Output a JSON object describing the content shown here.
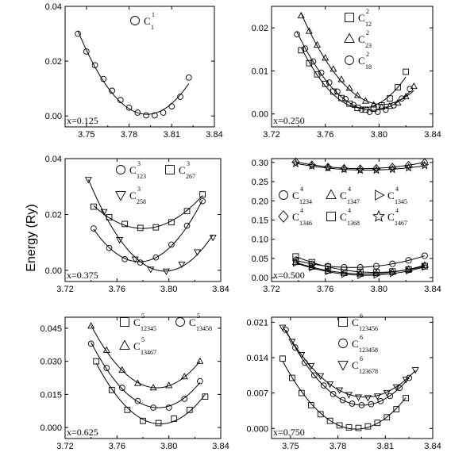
{
  "figure": {
    "ylabel": "Energy (Ry)"
  },
  "chart_data": [
    {
      "type": "scatter",
      "annotation": "x=0.125",
      "xlim": [
        3.735,
        3.84
      ],
      "ylim": [
        -0.004,
        0.04
      ],
      "xticks": [
        "3.75",
        "3.78",
        "3.81",
        "3.84"
      ],
      "xtick_values": [
        3.75,
        3.78,
        3.81,
        3.84
      ],
      "yticks": [
        "0.00",
        "0.02",
        "0.04"
      ],
      "ytick_values": [
        0.0,
        0.02,
        0.04
      ],
      "legend_cols": 1,
      "series": [
        {
          "name": "C",
          "sub": "1",
          "sup": "1",
          "marker": "circle",
          "x": [
            3.744,
            3.75,
            3.756,
            3.762,
            3.768,
            3.774,
            3.78,
            3.786,
            3.792,
            3.798,
            3.804,
            3.81,
            3.816,
            3.822
          ],
          "y": [
            0.03,
            0.0235,
            0.0185,
            0.0135,
            0.0092,
            0.0058,
            0.003,
            0.0012,
            0.0002,
            0.0002,
            0.0012,
            0.0035,
            0.007,
            0.014
          ]
        }
      ]
    },
    {
      "type": "scatter",
      "annotation": "x=0.250",
      "xlim": [
        3.72,
        3.84
      ],
      "ylim": [
        -0.003,
        0.025
      ],
      "xticks": [
        "3.72",
        "3.76",
        "3.80",
        "3.84"
      ],
      "xtick_values": [
        3.72,
        3.76,
        3.8,
        3.84
      ],
      "yticks": [
        "0.00",
        "0.01",
        "0.02"
      ],
      "ytick_values": [
        0.0,
        0.01,
        0.02
      ],
      "legend_cols": 1,
      "series": [
        {
          "name": "C",
          "sub": "12",
          "sup": "2",
          "marker": "square",
          "x": [
            3.742,
            3.748,
            3.754,
            3.76,
            3.766,
            3.772,
            3.778,
            3.784,
            3.79,
            3.796,
            3.802,
            3.808,
            3.814,
            3.82
          ],
          "y": [
            0.0148,
            0.0118,
            0.0092,
            0.007,
            0.0052,
            0.0037,
            0.0024,
            0.0014,
            0.001,
            0.0012,
            0.002,
            0.0036,
            0.0062,
            0.0098
          ]
        },
        {
          "name": "C",
          "sub": "23",
          "sup": "2",
          "marker": "triangle-up",
          "x": [
            3.742,
            3.748,
            3.754,
            3.76,
            3.766,
            3.772,
            3.778,
            3.784,
            3.79,
            3.796,
            3.802,
            3.808,
            3.814,
            3.82,
            3.826
          ],
          "y": [
            0.0228,
            0.0192,
            0.016,
            0.013,
            0.0104,
            0.008,
            0.006,
            0.0043,
            0.003,
            0.0021,
            0.0016,
            0.0018,
            0.0026,
            0.004,
            0.0064
          ]
        },
        {
          "name": "C",
          "sub": "18",
          "sup": "2",
          "marker": "circle",
          "x": [
            3.739,
            3.745,
            3.751,
            3.757,
            3.763,
            3.769,
            3.775,
            3.781,
            3.787,
            3.793,
            3.799,
            3.805,
            3.811,
            3.817,
            3.823
          ],
          "y": [
            0.0185,
            0.0152,
            0.0122,
            0.0096,
            0.0073,
            0.0052,
            0.0035,
            0.0021,
            0.001,
            0.0005,
            0.0005,
            0.001,
            0.002,
            0.0036,
            0.0058
          ]
        }
      ]
    },
    {
      "type": "scatter",
      "annotation": "x=0.375",
      "xlim": [
        3.72,
        3.84
      ],
      "ylim": [
        -0.004,
        0.04
      ],
      "xticks": [
        "3.72",
        "3.76",
        "3.80",
        "3.84"
      ],
      "xtick_values": [
        3.72,
        3.76,
        3.8,
        3.84
      ],
      "yticks": [
        "0.00",
        "0.02",
        "0.04"
      ],
      "ytick_values": [
        0.0,
        0.02,
        0.04
      ],
      "legend_cols": 2,
      "series": [
        {
          "name": "C",
          "sub": "123",
          "sup": "3",
          "marker": "circle",
          "x": [
            3.742,
            3.754,
            3.766,
            3.778,
            3.79,
            3.802,
            3.814,
            3.826
          ],
          "y": [
            0.015,
            0.008,
            0.004,
            0.0028,
            0.0046,
            0.0092,
            0.016,
            0.0248
          ]
        },
        {
          "name": "C",
          "sub": "267",
          "sup": "3",
          "marker": "square",
          "x": [
            3.742,
            3.754,
            3.766,
            3.778,
            3.79,
            3.802,
            3.814,
            3.826
          ],
          "y": [
            0.0228,
            0.019,
            0.0166,
            0.0152,
            0.0154,
            0.0172,
            0.0212,
            0.0272
          ]
        },
        {
          "name": "C",
          "sub": "258",
          "sup": "3",
          "marker": "triangle-down",
          "x": [
            3.738,
            3.75,
            3.762,
            3.774,
            3.786,
            3.798,
            3.81,
            3.822,
            3.834
          ],
          "y": [
            0.0325,
            0.021,
            0.011,
            0.004,
            0.0004,
            -0.0003,
            0.0022,
            0.0066,
            0.0118
          ]
        }
      ]
    },
    {
      "type": "scatter",
      "annotation": "x=0.500",
      "xlim": [
        3.72,
        3.84
      ],
      "ylim": [
        -0.01,
        0.31
      ],
      "xticks": [
        "3.72",
        "3.76",
        "3.80",
        "3.84"
      ],
      "xtick_values": [
        3.72,
        3.76,
        3.8,
        3.84
      ],
      "yticks": [
        "0.00",
        "0.05",
        "0.10",
        "0.15",
        "0.20",
        "0.25",
        "0.30"
      ],
      "ytick_values": [
        0.0,
        0.05,
        0.1,
        0.15,
        0.2,
        0.25,
        0.3
      ],
      "legend_cols": 3,
      "series": [
        {
          "name": "C",
          "sub": "1234",
          "sup": "4",
          "marker": "circle",
          "x": [
            3.738,
            3.75,
            3.762,
            3.774,
            3.786,
            3.798,
            3.81,
            3.822,
            3.834
          ],
          "y": [
            0.045,
            0.036,
            0.03,
            0.027,
            0.027,
            0.03,
            0.036,
            0.045,
            0.057
          ]
        },
        {
          "name": "C",
          "sub": "1347",
          "sup": "4",
          "marker": "triangle-up",
          "x": [
            3.738,
            3.75,
            3.762,
            3.774,
            3.786,
            3.798,
            3.81,
            3.822,
            3.834
          ],
          "y": [
            0.04,
            0.028,
            0.018,
            0.012,
            0.01,
            0.011,
            0.015,
            0.022,
            0.032
          ]
        },
        {
          "name": "C",
          "sub": "1345",
          "sup": "4",
          "marker": "triangle-right",
          "x": [
            3.738,
            3.75,
            3.762,
            3.774,
            3.786,
            3.798,
            3.81,
            3.822,
            3.834
          ],
          "y": [
            0.038,
            0.026,
            0.016,
            0.009,
            0.006,
            0.007,
            0.011,
            0.018,
            0.028
          ]
        },
        {
          "name": "C",
          "sub": "1346",
          "sup": "4",
          "marker": "diamond",
          "x": [
            3.738,
            3.75,
            3.762,
            3.774,
            3.786,
            3.798,
            3.81,
            3.822,
            3.834
          ],
          "y": [
            0.302,
            0.294,
            0.288,
            0.285,
            0.284,
            0.285,
            0.288,
            0.293,
            0.3
          ]
        },
        {
          "name": "C",
          "sub": "1368",
          "sup": "4",
          "marker": "square",
          "x": [
            3.738,
            3.75,
            3.762,
            3.774,
            3.786,
            3.798,
            3.81,
            3.822,
            3.834
          ],
          "y": [
            0.055,
            0.04,
            0.028,
            0.02,
            0.015,
            0.014,
            0.016,
            0.021,
            0.03
          ]
        },
        {
          "name": "C",
          "sub": "1467",
          "sup": "4",
          "marker": "star",
          "x": [
            3.738,
            3.75,
            3.762,
            3.774,
            3.786,
            3.798,
            3.81,
            3.822,
            3.834
          ],
          "y": [
            0.297,
            0.291,
            0.286,
            0.282,
            0.28,
            0.28,
            0.282,
            0.286,
            0.292
          ]
        }
      ]
    },
    {
      "type": "scatter",
      "annotation": "x=0.625",
      "xlim": [
        3.72,
        3.84
      ],
      "ylim": [
        -0.005,
        0.05
      ],
      "xticks": [
        "3.72",
        "3.76",
        "3.80",
        "3.84"
      ],
      "xtick_values": [
        3.72,
        3.76,
        3.8,
        3.84
      ],
      "yticks": [
        "0.000",
        "0.015",
        "0.030",
        "0.045"
      ],
      "ytick_values": [
        0.0,
        0.015,
        0.03,
        0.045
      ],
      "legend_cols": 2,
      "series": [
        {
          "name": "C",
          "sub": "12345",
          "sup": "5",
          "marker": "square",
          "x": [
            3.744,
            3.756,
            3.768,
            3.78,
            3.792,
            3.804,
            3.816,
            3.828
          ],
          "y": [
            0.03,
            0.017,
            0.008,
            0.003,
            0.002,
            0.004,
            0.008,
            0.014
          ]
        },
        {
          "name": "C",
          "sub": "13458",
          "sup": "5",
          "marker": "circle",
          "x": [
            3.74,
            3.752,
            3.764,
            3.776,
            3.788,
            3.8,
            3.812,
            3.824
          ],
          "y": [
            0.038,
            0.027,
            0.018,
            0.012,
            0.009,
            0.009,
            0.013,
            0.021
          ]
        },
        {
          "name": "C",
          "sub": "13467",
          "sup": "5",
          "marker": "triangle-up",
          "x": [
            3.74,
            3.752,
            3.764,
            3.776,
            3.788,
            3.8,
            3.812,
            3.824
          ],
          "y": [
            0.046,
            0.035,
            0.026,
            0.02,
            0.018,
            0.019,
            0.023,
            0.03
          ]
        }
      ]
    },
    {
      "type": "scatter",
      "annotation": "x=0.750",
      "xlim": [
        3.738,
        3.84
      ],
      "ylim": [
        -0.002,
        0.022
      ],
      "xticks": [
        "3.75",
        "3.78",
        "3.81",
        "3.84"
      ],
      "xtick_values": [
        3.75,
        3.78,
        3.81,
        3.84
      ],
      "yticks": [
        "0.000",
        "0.007",
        "0.014",
        "0.021"
      ],
      "ytick_values": [
        0.0,
        0.007,
        0.014,
        0.021
      ],
      "legend_cols": 1,
      "series": [
        {
          "name": "C",
          "sub": "123456",
          "sup": "6",
          "marker": "square",
          "x": [
            3.745,
            3.751,
            3.757,
            3.763,
            3.769,
            3.775,
            3.781,
            3.787,
            3.793,
            3.799,
            3.805,
            3.811,
            3.817,
            3.823
          ],
          "y": [
            0.0138,
            0.01,
            0.007,
            0.0046,
            0.0028,
            0.0015,
            0.0006,
            0.0002,
            0.0001,
            0.0004,
            0.0011,
            0.0022,
            0.0038,
            0.006
          ]
        },
        {
          "name": "C",
          "sub": "123458",
          "sup": "6",
          "marker": "circle",
          "x": [
            3.747,
            3.753,
            3.759,
            3.765,
            3.771,
            3.777,
            3.783,
            3.789,
            3.795,
            3.801,
            3.807,
            3.813,
            3.819,
            3.825
          ],
          "y": [
            0.0195,
            0.016,
            0.013,
            0.0105,
            0.0085,
            0.0068,
            0.0056,
            0.0049,
            0.0046,
            0.0048,
            0.0054,
            0.0064,
            0.008,
            0.01
          ]
        },
        {
          "name": "C",
          "sub": "123678",
          "sup": "6",
          "marker": "triangle-down",
          "x": [
            3.745,
            3.751,
            3.757,
            3.763,
            3.769,
            3.775,
            3.781,
            3.787,
            3.793,
            3.799,
            3.805,
            3.811,
            3.817,
            3.823,
            3.829
          ],
          "y": [
            0.02,
            0.0172,
            0.0146,
            0.0124,
            0.0104,
            0.0088,
            0.0076,
            0.0067,
            0.0062,
            0.0061,
            0.0064,
            0.0071,
            0.0082,
            0.0097,
            0.0116
          ]
        }
      ]
    }
  ]
}
